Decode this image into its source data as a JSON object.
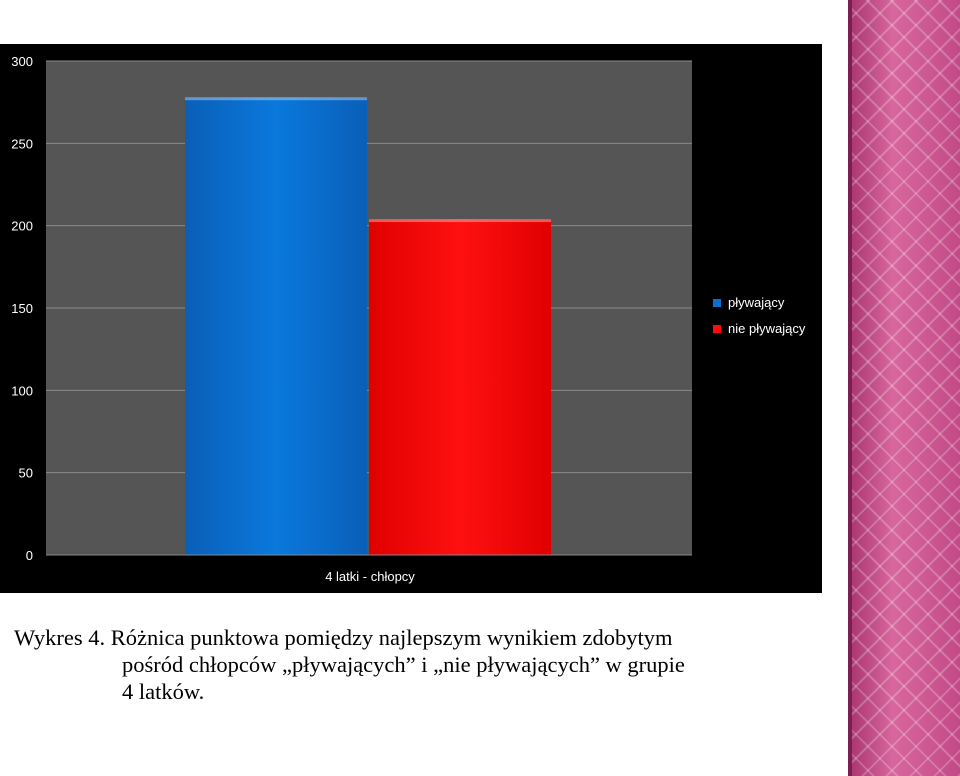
{
  "chart_data": {
    "type": "bar",
    "categories": [
      "4 latki - chłopcy"
    ],
    "series": [
      {
        "name": "pływający",
        "values": [
          278
        ],
        "color": "#0a70d0"
      },
      {
        "name": "nie pływający",
        "values": [
          204
        ],
        "color": "#ff0a0a"
      }
    ],
    "y_ticks": [
      "300",
      "250",
      "200",
      "150",
      "100",
      "50",
      "0"
    ],
    "ylim": [
      0,
      300
    ],
    "grid": true,
    "legend_position": "right",
    "background": "#000000",
    "plot_background": "#555555"
  },
  "caption": {
    "line1": "Wykres 4. Różnica punktowa pomiędzy najlepszym wynikiem zdobytym",
    "line2": "pośród chłopców „pływających” i „nie pływających” w grupie",
    "line3": "4 latków."
  }
}
